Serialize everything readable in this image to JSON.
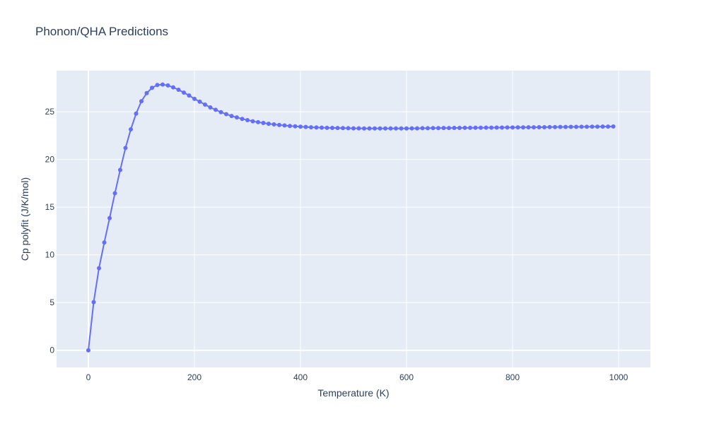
{
  "chart_data": {
    "type": "line",
    "title": "Phonon/QHA Predictions",
    "xlabel": "Temperature (K)",
    "ylabel": "Cp polyfit (J/K/mol)",
    "xlim": [
      -60,
      1060
    ],
    "ylim": [
      -1.8,
      29.3
    ],
    "xticks": [
      0,
      200,
      400,
      600,
      800,
      1000
    ],
    "yticks": [
      0,
      5,
      10,
      15,
      20,
      25
    ],
    "grid": true,
    "legend": "none",
    "colors": {
      "series": "#636efa",
      "plot_bg": "#e5ecf6",
      "grid": "#ffffff",
      "text": "#2a3f5f"
    },
    "series": [
      {
        "mode": "lines+markers",
        "x": [
          0,
          10,
          20,
          30,
          40,
          50,
          60,
          70,
          80,
          90,
          100,
          110,
          120,
          130,
          140,
          150,
          160,
          170,
          180,
          190,
          200,
          210,
          220,
          230,
          240,
          250,
          260,
          270,
          280,
          290,
          300,
          310,
          320,
          330,
          340,
          350,
          360,
          370,
          380,
          390,
          400,
          410,
          420,
          430,
          440,
          450,
          460,
          470,
          480,
          490,
          500,
          510,
          520,
          530,
          540,
          550,
          560,
          570,
          580,
          590,
          600,
          610,
          620,
          630,
          640,
          650,
          660,
          670,
          680,
          690,
          700,
          710,
          720,
          730,
          740,
          750,
          760,
          770,
          780,
          790,
          800,
          810,
          820,
          830,
          840,
          850,
          860,
          870,
          880,
          890,
          900,
          910,
          920,
          930,
          940,
          950,
          960,
          970,
          980,
          990
        ],
        "y": [
          0,
          5.05,
          8.6,
          11.3,
          13.85,
          16.45,
          18.9,
          21.2,
          23.15,
          24.8,
          26.1,
          26.95,
          27.5,
          27.8,
          27.85,
          27.75,
          27.55,
          27.3,
          27.0,
          26.7,
          26.35,
          26.05,
          25.75,
          25.45,
          25.2,
          24.95,
          24.75,
          24.55,
          24.4,
          24.25,
          24.12,
          24.0,
          23.9,
          23.82,
          23.74,
          23.67,
          23.61,
          23.56,
          23.51,
          23.47,
          23.43,
          23.4,
          23.37,
          23.35,
          23.33,
          23.31,
          23.3,
          23.29,
          23.28,
          23.27,
          23.26,
          23.26,
          23.25,
          23.25,
          23.25,
          23.25,
          23.25,
          23.25,
          23.25,
          23.25,
          23.25,
          23.26,
          23.26,
          23.27,
          23.27,
          23.28,
          23.28,
          23.29,
          23.29,
          23.3,
          23.3,
          23.31,
          23.31,
          23.32,
          23.32,
          23.33,
          23.33,
          23.34,
          23.34,
          23.35,
          23.35,
          23.36,
          23.36,
          23.37,
          23.37,
          23.38,
          23.38,
          23.39,
          23.39,
          23.4,
          23.4,
          23.41,
          23.41,
          23.42,
          23.42,
          23.43,
          23.43,
          23.44,
          23.44,
          23.45
        ]
      }
    ]
  }
}
